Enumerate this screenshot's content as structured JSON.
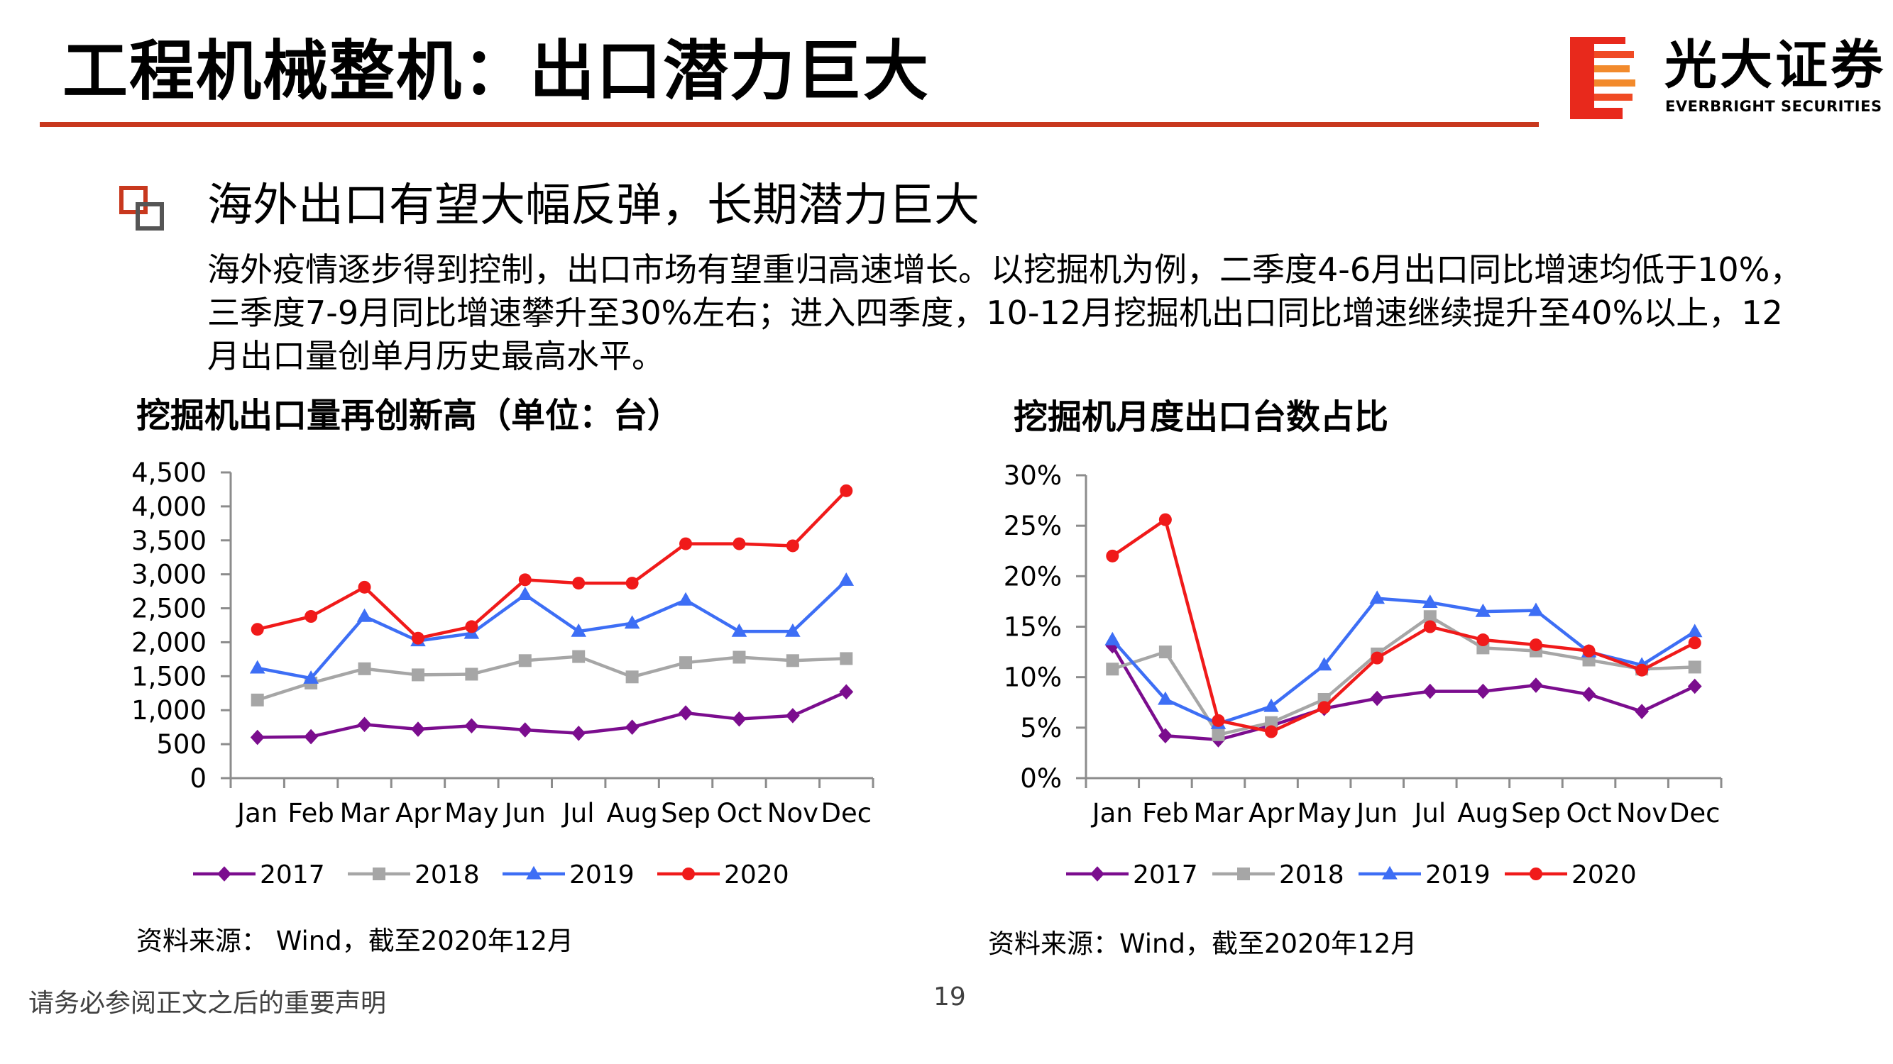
{
  "header": {
    "title": "工程机械整机：出口潜力巨大",
    "logo_cn": "光大证券",
    "logo_en": "EVERBRIGHT SECURITIES",
    "colors": {
      "accent": "#c8381e",
      "logo_red": "#e8291c",
      "logo_orange": "#f28a2c"
    }
  },
  "section": {
    "bullet_icon": "double-square-icon",
    "heading": "海外出口有望大幅反弹，长期潜力巨大",
    "body": "海外疫情逐步得到控制，出口市场有望重归高速增长。以挖掘机为例，二季度4-6月出口同比增速均低于10%，三季度7-9月同比增速攀升至30%左右；进入四季度，10-12月挖掘机出口同比增速继续提升至40%以上，12月出口量创单月历史最高水平。"
  },
  "chart_data": [
    {
      "type": "line",
      "title": "挖掘机出口量再创新高（单位：台）",
      "categories": [
        "Jan",
        "Feb",
        "Mar",
        "Apr",
        "May",
        "Jun",
        "Jul",
        "Aug",
        "Sep",
        "Oct",
        "Nov",
        "Dec"
      ],
      "ylim": [
        0,
        4500
      ],
      "yticks": [
        0,
        500,
        1000,
        1500,
        2000,
        2500,
        3000,
        3500,
        4000,
        4500
      ],
      "ytick_labels": [
        "0",
        "500",
        "1,000",
        "1,500",
        "2,000",
        "2,500",
        "3,000",
        "3,500",
        "4,000",
        "4,500"
      ],
      "grid": false,
      "legend": "bottom",
      "series": [
        {
          "name": "2017",
          "color": "#7b0d8e",
          "marker": "diamond",
          "values": [
            600,
            610,
            790,
            720,
            770,
            710,
            660,
            750,
            960,
            870,
            920,
            1270
          ]
        },
        {
          "name": "2018",
          "color": "#a6a6a6",
          "marker": "square",
          "values": [
            1150,
            1400,
            1610,
            1520,
            1530,
            1730,
            1790,
            1490,
            1700,
            1780,
            1730,
            1760
          ]
        },
        {
          "name": "2019",
          "color": "#3d6ef5",
          "marker": "triangle",
          "values": [
            1620,
            1470,
            2380,
            2020,
            2130,
            2700,
            2160,
            2280,
            2620,
            2160,
            2160,
            2910
          ]
        },
        {
          "name": "2020",
          "color": "#f01a1a",
          "marker": "circle",
          "values": [
            2190,
            2380,
            2810,
            2060,
            2230,
            2920,
            2870,
            2870,
            3450,
            3450,
            3420,
            4230
          ]
        }
      ],
      "source": "资料来源： Wind，截至2020年12月"
    },
    {
      "type": "line",
      "title": "挖掘机月度出口台数占比",
      "categories": [
        "Jan",
        "Feb",
        "Mar",
        "Apr",
        "May",
        "Jun",
        "Jul",
        "Aug",
        "Sep",
        "Oct",
        "Nov",
        "Dec"
      ],
      "ylim": [
        0,
        30
      ],
      "yticks": [
        0,
        5,
        10,
        15,
        20,
        25,
        30
      ],
      "ytick_labels": [
        "0%",
        "5%",
        "10%",
        "15%",
        "20%",
        "25%",
        "30%"
      ],
      "grid": false,
      "legend": "bottom",
      "series": [
        {
          "name": "2017",
          "color": "#7b0d8e",
          "marker": "diamond",
          "values": [
            13.1,
            4.2,
            3.8,
            5.2,
            6.9,
            7.9,
            8.6,
            8.6,
            9.2,
            8.3,
            6.6,
            9.1
          ]
        },
        {
          "name": "2018",
          "color": "#a6a6a6",
          "marker": "square",
          "values": [
            10.8,
            12.5,
            4.3,
            5.5,
            7.8,
            12.3,
            16.0,
            12.9,
            12.6,
            11.7,
            10.8,
            11.0
          ]
        },
        {
          "name": "2019",
          "color": "#3d6ef5",
          "marker": "triangle",
          "values": [
            13.7,
            7.8,
            5.4,
            7.1,
            11.2,
            17.8,
            17.4,
            16.5,
            16.6,
            12.5,
            11.2,
            14.5
          ]
        },
        {
          "name": "2020",
          "color": "#f01a1a",
          "marker": "circle",
          "values": [
            22.0,
            25.6,
            5.7,
            4.6,
            7.0,
            11.9,
            15.0,
            13.7,
            13.2,
            12.6,
            10.7,
            13.4
          ]
        }
      ],
      "source": "资料来源：Wind，截至2020年12月"
    }
  ],
  "footer": {
    "disclaimer": "请务必参阅正文之后的重要声明",
    "page_number": "19"
  }
}
